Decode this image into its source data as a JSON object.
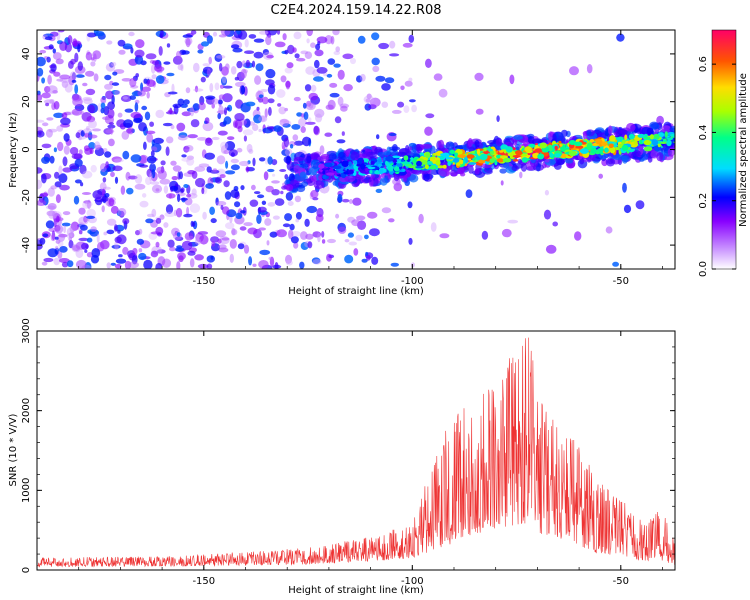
{
  "figure": {
    "title": "C2E4.2024.159.14.22.R08"
  },
  "chart_data": [
    {
      "type": "heatmap",
      "title": "",
      "xlabel": "Height of straight line (km)",
      "ylabel": "Frequency (Hz)",
      "xlim": [
        -190,
        -37
      ],
      "ylim": [
        -50,
        50
      ],
      "x_ticks": [
        -150,
        -100,
        -50
      ],
      "y_ticks": [
        -40,
        -20,
        0,
        20,
        40
      ],
      "colorbar": {
        "label": "Normalized spectral amplitude",
        "range": [
          0,
          0.7
        ],
        "ticks": [
          0.0,
          0.2,
          0.4,
          0.6
        ],
        "colormap": [
          "#ffffff",
          "#cc99ff",
          "#8800ff",
          "#0000ff",
          "#00ddff",
          "#00ff88",
          "#aaff00",
          "#ffdd00",
          "#ff5500",
          "#ff0066"
        ]
      },
      "signal_band": {
        "x_start": -130,
        "x_end": -37,
        "frequency_at_start": -10,
        "frequency_at_end": 4,
        "peak_amplitude": 0.7
      },
      "noise_region": {
        "x_start": -190,
        "x_end": -120,
        "amplitude": 0.25
      }
    },
    {
      "type": "line",
      "title": "",
      "xlabel": "Height of straight line (km)",
      "ylabel": "SNR (10 * V/V)",
      "xlim": [
        -190,
        -37
      ],
      "ylim": [
        0,
        3000
      ],
      "x_ticks": [
        -150,
        -100,
        -50
      ],
      "y_ticks": [
        0,
        1000,
        2000,
        3000
      ],
      "color": "#ee3333",
      "series": [
        {
          "name": "",
          "envelope_x": [
            -190,
            -160,
            -140,
            -125,
            -110,
            -100,
            -92,
            -85,
            -80,
            -75,
            -72,
            -70,
            -65,
            -60,
            -55,
            -50,
            -45,
            -40,
            -37
          ],
          "envelope_max": [
            160,
            170,
            230,
            280,
            420,
            600,
            1800,
            2200,
            2400,
            2800,
            3000,
            2300,
            1800,
            1600,
            1100,
            900,
            650,
            780,
            350
          ],
          "envelope_min": [
            40,
            45,
            60,
            70,
            110,
            150,
            300,
            450,
            500,
            550,
            600,
            450,
            400,
            300,
            200,
            180,
            120,
            110,
            60
          ]
        }
      ]
    }
  ]
}
